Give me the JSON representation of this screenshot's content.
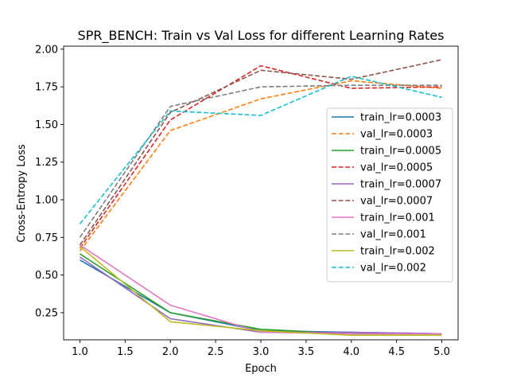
{
  "chart_data": {
    "type": "line",
    "title": "SPR_BENCH: Train vs Val Loss for different Learning Rates",
    "xlabel": "Epoch",
    "ylabel": "Cross-Entropy Loss",
    "xlim": [
      0.82,
      5.18
    ],
    "ylim": [
      0.07,
      2.02
    ],
    "xticks": [
      "1.0",
      "1.5",
      "2.0",
      "2.5",
      "3.0",
      "3.5",
      "4.0",
      "4.5",
      "5.0"
    ],
    "yticks": [
      "0.25",
      "0.50",
      "0.75",
      "1.00",
      "1.25",
      "1.50",
      "1.75",
      "2.00"
    ],
    "grid": false,
    "legend_position": "center-right",
    "x": [
      1,
      2,
      3,
      4,
      5
    ],
    "series": [
      {
        "name": "train_lr=0.0003",
        "color": "#1f77b4",
        "style": "solid",
        "values": [
          0.6,
          0.25,
          0.13,
          0.12,
          0.11
        ]
      },
      {
        "name": "val_lr=0.0003",
        "color": "#ff7f0e",
        "style": "dashed",
        "values": [
          0.66,
          1.46,
          1.67,
          1.79,
          1.74
        ]
      },
      {
        "name": "train_lr=0.0005",
        "color": "#2ca02c",
        "style": "solid",
        "values": [
          0.64,
          0.25,
          0.14,
          0.11,
          0.11
        ]
      },
      {
        "name": "val_lr=0.0005",
        "color": "#d62728",
        "style": "dashed",
        "values": [
          0.68,
          1.53,
          1.89,
          1.74,
          1.75
        ]
      },
      {
        "name": "train_lr=0.0007",
        "color": "#9467bd",
        "style": "solid",
        "values": [
          0.62,
          0.21,
          0.12,
          0.12,
          0.11
        ]
      },
      {
        "name": "val_lr=0.0007",
        "color": "#8c564b",
        "style": "dashed",
        "values": [
          0.7,
          1.58,
          1.86,
          1.8,
          1.93
        ]
      },
      {
        "name": "train_lr=0.001",
        "color": "#e377c2",
        "style": "solid",
        "values": [
          0.7,
          0.3,
          0.12,
          0.11,
          0.11
        ]
      },
      {
        "name": "val_lr=0.001",
        "color": "#7f7f7f",
        "style": "dashed",
        "values": [
          0.75,
          1.62,
          1.75,
          1.76,
          1.76
        ]
      },
      {
        "name": "train_lr=0.002",
        "color": "#bcbd22",
        "style": "solid",
        "values": [
          0.69,
          0.19,
          0.13,
          0.1,
          0.1
        ]
      },
      {
        "name": "val_lr=0.002",
        "color": "#17becf",
        "style": "dashed",
        "values": [
          0.84,
          1.59,
          1.56,
          1.82,
          1.68
        ]
      }
    ]
  }
}
